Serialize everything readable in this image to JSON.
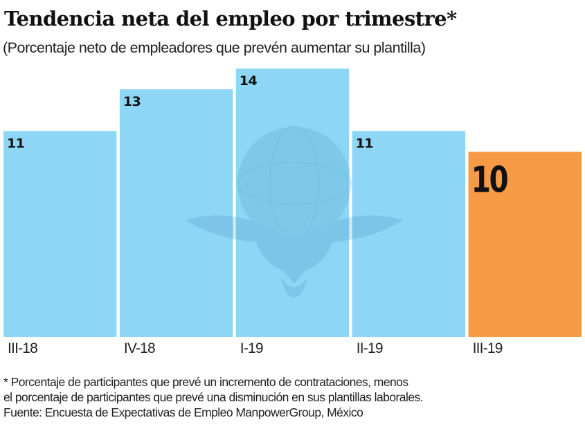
{
  "chart_data": {
    "type": "bar",
    "title": "Tendencia neta del empleo por trimestre*",
    "subtitle": "(Porcentaje neto de empleadores que prevén aumentar su plantilla)",
    "categories": [
      "III-18",
      "IV-18",
      "I-19",
      "II-19",
      "III-19"
    ],
    "values": [
      11,
      13,
      14,
      11,
      10
    ],
    "value_labels": [
      "11",
      "13",
      "14",
      "11",
      "10"
    ],
    "highlight_index": 4,
    "xlabel": "",
    "ylabel": "",
    "ylim": [
      1.1,
      15
    ],
    "grid": false,
    "legend": "none",
    "colors": {
      "bar": "#8dd6f6",
      "highlight": "#f79a45",
      "watermark": "#6fb8d8"
    },
    "footnotes": [
      "* Porcentaje de participantes que prevé un incremento de contrataciones, menos",
      "el porcentaje de participantes que prevé una disminución en sus plantillas laborales.",
      "Fuente: Encuesta de Expectativas de Empleo ManpowerGroup, México"
    ]
  }
}
